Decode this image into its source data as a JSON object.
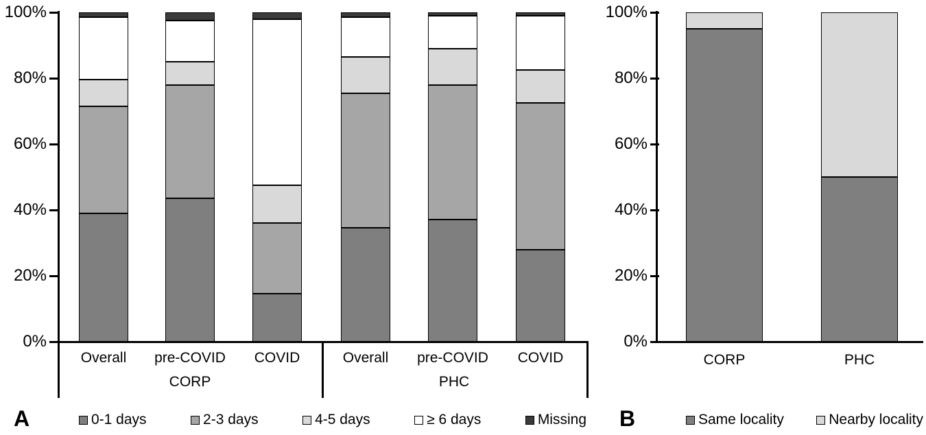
{
  "figure": {
    "background": "#ffffff"
  },
  "panelA": {
    "letter": "A"
  },
  "panelB": {
    "letter": "B"
  },
  "colors": {
    "seg_dark_gray": "#7f7f7f",
    "seg_medium_gray": "#a6a6a6",
    "seg_light_gray": "#d9d9d9",
    "seg_white": "#ffffff",
    "seg_missing": "#3b3b3b",
    "axis": "#000000"
  },
  "chart_data": [
    {
      "type": "bar",
      "subtype": "stacked-100-percent",
      "panel": "A",
      "categories": [
        "Overall",
        "pre-COVID",
        "COVID",
        "Overall",
        "pre-COVID",
        "COVID"
      ],
      "group_labels": [
        "CORP",
        "PHC"
      ],
      "group_of_category": [
        0,
        0,
        0,
        1,
        1,
        1
      ],
      "series": [
        {
          "name": "0-1 days",
          "color": "#7f7f7f",
          "values": [
            39,
            43.5,
            14.5,
            34.5,
            37,
            28
          ]
        },
        {
          "name": "2-3 days",
          "color": "#a6a6a6",
          "values": [
            32.5,
            34.5,
            21.5,
            41,
            41,
            44.5
          ]
        },
        {
          "name": "4-5 days",
          "color": "#d9d9d9",
          "values": [
            8,
            7,
            11.5,
            11,
            11,
            10
          ]
        },
        {
          "name": "≥ 6 days",
          "color": "#ffffff",
          "values": [
            19,
            12.5,
            50.5,
            12,
            10,
            16.5
          ]
        },
        {
          "name": "Missing",
          "color": "#3b3b3b",
          "values": [
            1.5,
            2.5,
            2,
            1.5,
            1,
            1
          ]
        }
      ],
      "title": "",
      "xlabel": "",
      "ylabel": "",
      "y_tick_labels": [
        "100%",
        "80%",
        "60%",
        "40%",
        "20%",
        "0%"
      ],
      "y_tick_values": [
        100,
        80,
        60,
        40,
        20,
        0
      ],
      "ylim": [
        0,
        100
      ],
      "grid": false,
      "legend_position": "bottom"
    },
    {
      "type": "bar",
      "subtype": "stacked-100-percent",
      "panel": "B",
      "categories": [
        "CORP",
        "PHC"
      ],
      "series": [
        {
          "name": "Same locality",
          "color": "#7f7f7f",
          "values": [
            95,
            50
          ]
        },
        {
          "name": "Nearby locality",
          "color": "#d9d9d9",
          "values": [
            5,
            50
          ]
        }
      ],
      "title": "",
      "xlabel": "",
      "ylabel": "",
      "y_tick_labels": [
        "100%",
        "80%",
        "60%",
        "40%",
        "20%",
        "0%"
      ],
      "y_tick_values": [
        100,
        80,
        60,
        40,
        20,
        0
      ],
      "ylim": [
        0,
        100
      ],
      "grid": false,
      "legend_position": "bottom"
    }
  ]
}
